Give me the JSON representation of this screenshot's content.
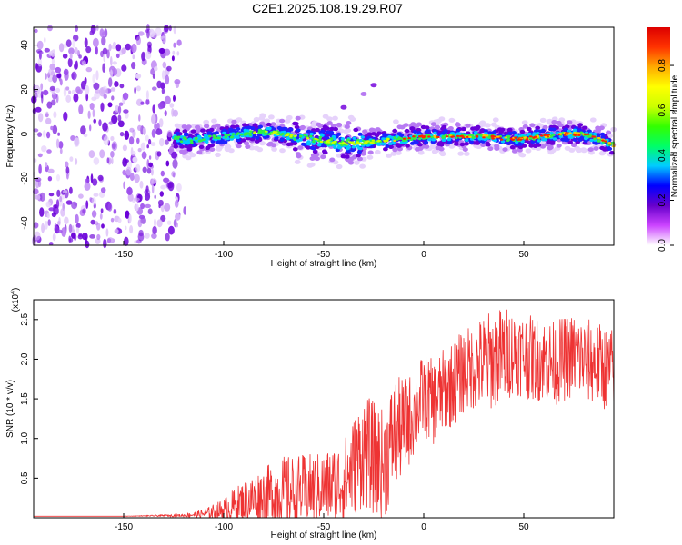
{
  "title": "C2E1.2025.108.19.29.R07",
  "chart_data": [
    {
      "type": "heatmap",
      "xlabel": "Height of straight line (km)",
      "ylabel": "Frequency (Hz)",
      "xlim": [
        -195,
        95
      ],
      "ylim": [
        -50,
        48
      ],
      "xticks": [
        -150,
        -100,
        -50,
        0,
        50
      ],
      "yticks": [
        -40,
        -20,
        0,
        20,
        40
      ],
      "ridge": {
        "x": [
          -125,
          -115,
          -100,
          -90,
          -80,
          -70,
          -60,
          -50,
          -40,
          -30,
          -20,
          -10,
          0,
          10,
          20,
          30,
          40,
          50,
          60,
          70,
          80,
          90,
          95
        ],
        "frequency": [
          -2,
          -3,
          -1,
          0,
          1,
          0,
          -2,
          -3,
          -4,
          -4,
          -3,
          -2,
          -1,
          -1,
          -1,
          -1,
          -2,
          -2,
          -1,
          0,
          0,
          -3,
          -5
        ]
      },
      "features": [
        {
          "name": "noise",
          "x_range": [
            -195,
            -122
          ],
          "y_range": [
            -50,
            48
          ]
        },
        {
          "name": "streak",
          "x": [
            -55,
            -40,
            -30,
            -25
          ],
          "frequency": [
            5,
            12,
            18,
            22
          ]
        }
      ],
      "colorbar": {
        "label": "Normalized spectral amplitude",
        "range": [
          0,
          0.97
        ],
        "ticks": [
          0.0,
          0.2,
          0.4,
          0.6,
          0.8
        ],
        "tick_labels": [
          "0.0",
          "0.2",
          "0.4",
          "0.6",
          "0.8"
        ],
        "colors": [
          "#ffffff",
          "#cc44ff",
          "#6600cc",
          "#0000ff",
          "#00ccff",
          "#00ff66",
          "#33ff00",
          "#ccff00",
          "#ffff00",
          "#ffaa00",
          "#ff3300",
          "#dd0000"
        ]
      }
    },
    {
      "type": "line",
      "xlabel": "Height of straight line (km)",
      "ylabel": "SNR (10 * v/v)",
      "multiplier": "(x10",
      "multiplier_exp": "4",
      "multiplier_close": ")",
      "xlim": [
        -195,
        95
      ],
      "ylim": [
        0,
        2.75
      ],
      "xticks": [
        -150,
        -100,
        -50,
        0,
        50
      ],
      "yticks": [
        0.5,
        1.0,
        1.5,
        2.0,
        2.5
      ],
      "ytick_labels": [
        "0.5",
        "1.0",
        "1.5",
        "2.0",
        "2.5"
      ],
      "color": "#ee3333",
      "series": [
        {
          "x": [
            -195,
            -150,
            -120,
            -110,
            -100,
            -95,
            -90,
            -80,
            -70,
            -60,
            -50,
            -40,
            -35,
            -30,
            -25,
            -20,
            -15,
            -10,
            -5,
            0,
            5,
            10,
            15,
            20,
            25,
            30,
            35,
            40,
            45,
            50,
            55,
            60,
            65,
            70,
            75,
            80,
            85,
            90,
            95
          ],
          "values": [
            0.02,
            0.02,
            0.03,
            0.05,
            0.1,
            0.15,
            0.2,
            0.28,
            0.33,
            0.35,
            0.38,
            0.45,
            0.65,
            0.85,
            0.75,
            0.65,
            1.05,
            1.15,
            1.3,
            1.55,
            1.45,
            1.6,
            1.7,
            1.85,
            1.9,
            1.95,
            2.0,
            2.05,
            2.1,
            2.05,
            2.0,
            2.0,
            1.95,
            2.0,
            2.05,
            2.0,
            1.95,
            1.9,
            1.85
          ],
          "noise": [
            0.0,
            0.0,
            0.01,
            0.03,
            0.08,
            0.12,
            0.15,
            0.2,
            0.25,
            0.25,
            0.25,
            0.3,
            0.35,
            0.4,
            0.4,
            0.4,
            0.4,
            0.35,
            0.3,
            0.3,
            0.3,
            0.3,
            0.3,
            0.3,
            0.3,
            0.35,
            0.35,
            0.35,
            0.3,
            0.3,
            0.3,
            0.3,
            0.3,
            0.3,
            0.3,
            0.3,
            0.3,
            0.3,
            0.3
          ]
        }
      ]
    }
  ]
}
